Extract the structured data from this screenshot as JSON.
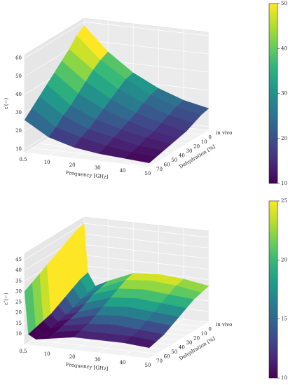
{
  "chart_data": [
    {
      "type": "surface3d",
      "xlabel": "Frequency [GHz]",
      "ylabel": "Dehydration [%]",
      "zlabel": "ε′(−)",
      "x": [
        0.5,
        10,
        20,
        30,
        40,
        50
      ],
      "categories": [
        "in vivo",
        "0",
        "10",
        "20",
        "30",
        "40",
        "50",
        "60",
        "70"
      ],
      "z": [
        [
          58,
          45,
          35,
          28,
          23,
          20
        ],
        [
          55,
          43,
          34,
          27,
          22,
          19
        ],
        [
          50,
          40,
          31,
          25,
          20,
          17
        ],
        [
          46,
          36,
          28,
          22,
          18,
          15
        ],
        [
          42,
          32,
          25,
          20,
          16,
          14
        ],
        [
          38,
          28,
          22,
          18,
          15,
          13
        ],
        [
          34,
          25,
          19,
          16,
          13,
          12
        ],
        [
          30,
          21,
          17,
          14,
          12,
          11
        ],
        [
          26,
          18,
          14,
          12,
          11,
          10
        ]
      ],
      "xlim": [
        0.5,
        50
      ],
      "xticks": [
        0.5,
        10,
        20,
        30,
        40,
        50
      ],
      "zlim": [
        8,
        62
      ],
      "zticks": [
        10,
        20,
        30,
        40,
        50,
        60
      ],
      "clim": [
        10,
        50
      ],
      "cticks": [
        10,
        20,
        30,
        40,
        50
      ],
      "colormap": "viridis"
    },
    {
      "type": "surface3d",
      "xlabel": "Frequency [GHz]",
      "ylabel": "Dehydration [%]",
      "zlabel": "ε″(−)",
      "x": [
        0.5,
        2,
        5,
        10,
        20,
        30,
        40,
        50
      ],
      "categories": [
        "in vivo",
        "0",
        "10",
        "20",
        "30",
        "40",
        "50",
        "60",
        "70"
      ],
      "z": [
        [
          45,
          22,
          16,
          19,
          24,
          25,
          24,
          22
        ],
        [
          44,
          21,
          15,
          18,
          23,
          24,
          23,
          21
        ],
        [
          42,
          19,
          14,
          17,
          21,
          22,
          21,
          20
        ],
        [
          40,
          17,
          12,
          15,
          19,
          20,
          19,
          18
        ],
        [
          38,
          15,
          11,
          13,
          17,
          18,
          17,
          16
        ],
        [
          36,
          13,
          10,
          12,
          15,
          16,
          15,
          14
        ],
        [
          34,
          12,
          9,
          11,
          13,
          14,
          13,
          12
        ],
        [
          32,
          11,
          8,
          10,
          12,
          12,
          12,
          11
        ],
        [
          30,
          10,
          8,
          9,
          11,
          11,
          11,
          10
        ]
      ],
      "xlim": [
        0.5,
        50
      ],
      "xticks": [
        0.5,
        10,
        20,
        30,
        40,
        50
      ],
      "zlim": [
        5,
        48
      ],
      "zticks": [
        10,
        15,
        20,
        25,
        30,
        35,
        40,
        45
      ],
      "clim": [
        10,
        25
      ],
      "cticks": [
        10,
        15,
        20,
        25
      ],
      "colormap": "viridis"
    }
  ]
}
